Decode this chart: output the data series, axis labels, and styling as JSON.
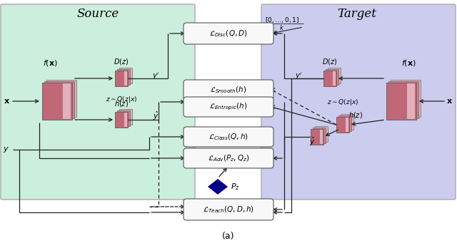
{
  "source_bg": "#cceedd",
  "target_bg": "#ccccee",
  "source_title": "Source",
  "target_title": "Target",
  "loss_disc": "$\\mathcal{L}_{Disc}(Q, D)$",
  "loss_smooth": "$\\mathcal{L}_{Smooth}(h)$",
  "loss_entropic": "$\\mathcal{L}_{Entropic}(h)$",
  "loss_class": "$\\mathcal{L}_{Class}(Q, h)$",
  "loss_adv": "$\\mathcal{L}_{Adv}(P_z, Q_z)$",
  "loss_teach": "$\\mathcal{L}_{Teach}(Q, D, h)$",
  "label_0k1": "$0, \\ldots, 0, 1]$",
  "label_k": "$k$",
  "source_fx": "$f(\\mathbf{x})$",
  "source_Dz": "$D(z)$",
  "source_Qzx": "$z \\sim Q(z|x)$",
  "source_hz": "$h(z)$",
  "source_x": "$\\mathbf{x}$",
  "source_y": "$y$",
  "source_yprime": "$y'$",
  "source_yhat": "$\\hat{y}$",
  "target_fx": "$f(\\mathbf{x})$",
  "target_Dz": "$D(z)$",
  "target_Qzx": "$z \\sim Q(z|x)$",
  "target_hz": "$h(z)$",
  "target_x": "$\\mathbf{x}$",
  "target_yprime": "$y'$",
  "target_yhat": "$\\hat{y}$",
  "pz_label": "$P_z$"
}
